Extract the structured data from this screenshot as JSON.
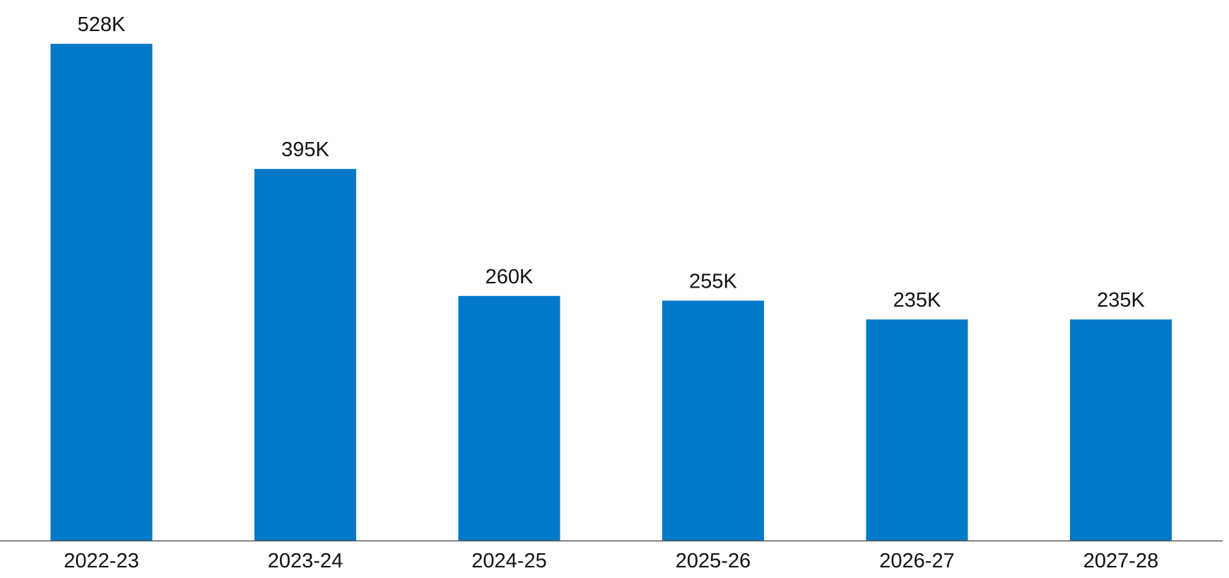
{
  "chart_data": {
    "type": "bar",
    "title": "",
    "xlabel": "",
    "ylabel": "",
    "categories": [
      "2022-23",
      "2023-24",
      "2024-25",
      "2025-26",
      "2026-27",
      "2027-28"
    ],
    "values": [
      528000,
      395000,
      260000,
      255000,
      235000,
      235000
    ],
    "data_labels": [
      "528K",
      "395K",
      "260K",
      "255K",
      "235K",
      "235K"
    ],
    "ylim": [
      0,
      528000
    ],
    "grid": false,
    "legend": "none",
    "bar_color": "#0079C8",
    "axis_color": "#595959"
  }
}
